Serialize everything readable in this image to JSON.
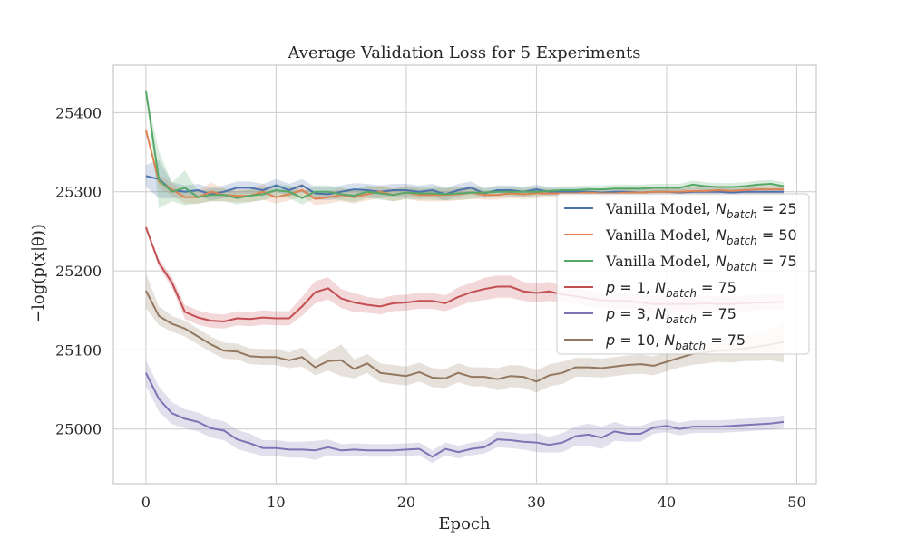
{
  "chart_data": {
    "type": "line",
    "title": "Average Validation Loss for 5 Experiments",
    "xlabel": "Epoch",
    "ylabel": "−log(p(x|θ))",
    "xlim": [
      -2.5,
      51.5
    ],
    "ylim": [
      24931,
      25460
    ],
    "xticks": [
      0,
      10,
      20,
      30,
      40,
      50
    ],
    "yticks": [
      25000,
      25100,
      25200,
      25300,
      25400
    ],
    "grid": true,
    "legend_position": "right",
    "series": [
      {
        "name": "Vanilla Model, N_batch = 25",
        "legend": {
          "prefix": "Vanilla Model, ",
          "var": "N",
          "sub": "batch",
          "eq": " = 25"
        },
        "color": "#4c72b0",
        "x": [
          0,
          1,
          2,
          3,
          4,
          5,
          6,
          7,
          8,
          9,
          10,
          11,
          12,
          13,
          14,
          15,
          16,
          17,
          18,
          19,
          20,
          21,
          22,
          23,
          24,
          25,
          26,
          27,
          28,
          29,
          30,
          31,
          32,
          33,
          34,
          35,
          36,
          37,
          38,
          39,
          40,
          41,
          42,
          43,
          44,
          45,
          46,
          47,
          48,
          49
        ],
        "values": [
          25320,
          25316,
          25302,
          25300,
          25302,
          25297,
          25300,
          25305,
          25305,
          25302,
          25308,
          25302,
          25308,
          25298,
          25297,
          25300,
          25303,
          25302,
          25300,
          25302,
          25302,
          25300,
          25302,
          25297,
          25302,
          25305,
          25298,
          25302,
          25302,
          25300,
          25303,
          25300,
          25300,
          25300,
          25300,
          25299,
          25300,
          25300,
          25299,
          25300,
          25300,
          25299,
          25300,
          25300,
          25300,
          25299,
          25300,
          25300,
          25300,
          25300
        ],
        "band": [
          14,
          24,
          10,
          8,
          8,
          8,
          8,
          8,
          8,
          8,
          8,
          8,
          8,
          8,
          8,
          8,
          8,
          8,
          8,
          8,
          8,
          8,
          8,
          8,
          8,
          8,
          6,
          6,
          6,
          6,
          6,
          5,
          5,
          5,
          5,
          5,
          5,
          5,
          5,
          5,
          5,
          5,
          5,
          5,
          5,
          5,
          5,
          5,
          5,
          5
        ]
      },
      {
        "name": "Vanilla Model, N_batch = 50",
        "legend": {
          "prefix": "Vanilla Model, ",
          "var": "N",
          "sub": "batch",
          "eq": " = 50"
        },
        "color": "#dd8452",
        "x": [
          0,
          1,
          2,
          3,
          4,
          5,
          6,
          7,
          8,
          9,
          10,
          11,
          12,
          13,
          14,
          15,
          16,
          17,
          18,
          19,
          20,
          21,
          22,
          23,
          24,
          25,
          26,
          27,
          28,
          29,
          30,
          31,
          32,
          33,
          34,
          35,
          36,
          37,
          38,
          39,
          40,
          41,
          42,
          43,
          44,
          45,
          46,
          47,
          48,
          49
        ],
        "values": [
          25378,
          25313,
          25303,
          25293,
          25293,
          25300,
          25296,
          25295,
          25295,
          25300,
          25293,
          25297,
          25302,
          25291,
          25293,
          25296,
          25293,
          25297,
          25300,
          25296,
          25299,
          25296,
          25296,
          25296,
          25297,
          25299,
          25296,
          25296,
          25298,
          25297,
          25298,
          25298,
          25298,
          25298,
          25299,
          25298,
          25298,
          25299,
          25299,
          25300,
          25300,
          25300,
          25301,
          25301,
          25302,
          25301,
          25302,
          25303,
          25303,
          25303
        ],
        "band": [
          0,
          8,
          8,
          8,
          8,
          12,
          8,
          8,
          8,
          10,
          8,
          8,
          8,
          8,
          8,
          8,
          8,
          8,
          8,
          8,
          8,
          8,
          8,
          8,
          8,
          8,
          6,
          6,
          6,
          6,
          6,
          5,
          5,
          5,
          5,
          5,
          5,
          5,
          5,
          5,
          5,
          5,
          5,
          5,
          5,
          5,
          5,
          5,
          5,
          5
        ]
      },
      {
        "name": "Vanilla Model, N_batch = 75",
        "legend": {
          "prefix": "Vanilla Model, ",
          "var": "N",
          "sub": "batch",
          "eq": " = 75"
        },
        "color": "#55a868",
        "x": [
          0,
          1,
          2,
          3,
          4,
          5,
          6,
          7,
          8,
          9,
          10,
          11,
          12,
          13,
          14,
          15,
          16,
          17,
          18,
          19,
          20,
          21,
          22,
          23,
          24,
          25,
          26,
          27,
          28,
          29,
          30,
          31,
          32,
          33,
          34,
          35,
          36,
          37,
          38,
          39,
          40,
          41,
          42,
          43,
          44,
          45,
          46,
          47,
          48,
          49
        ],
        "values": [
          25428,
          25315,
          25300,
          25305,
          25293,
          25296,
          25296,
          25292,
          25295,
          25297,
          25302,
          25300,
          25292,
          25300,
          25300,
          25297,
          25295,
          25300,
          25298,
          25296,
          25299,
          25298,
          25298,
          25297,
          25298,
          25299,
          25299,
          25300,
          25300,
          25300,
          25300,
          25301,
          25302,
          25302,
          25303,
          25303,
          25304,
          25304,
          25304,
          25305,
          25305,
          25305,
          25309,
          25307,
          25306,
          25306,
          25307,
          25309,
          25310,
          25307
        ],
        "band": [
          0,
          36,
          12,
          22,
          8,
          8,
          8,
          8,
          8,
          8,
          8,
          8,
          8,
          8,
          8,
          8,
          8,
          8,
          8,
          8,
          8,
          8,
          8,
          8,
          8,
          8,
          6,
          6,
          6,
          6,
          6,
          5,
          5,
          5,
          5,
          5,
          5,
          5,
          5,
          5,
          5,
          5,
          5,
          5,
          5,
          5,
          5,
          5,
          5,
          5
        ]
      },
      {
        "name": "p = 1, N_batch = 75",
        "legend": {
          "prefix": "",
          "var2": "p",
          "eq2": " = 1, ",
          "var": "N",
          "sub": "batch",
          "eq": " = 75"
        },
        "color": "#c44e52",
        "x": [
          0,
          1,
          2,
          3,
          4,
          5,
          6,
          7,
          8,
          9,
          10,
          11,
          12,
          13,
          14,
          15,
          16,
          17,
          18,
          19,
          20,
          21,
          22,
          23,
          24,
          25,
          26,
          27,
          28,
          29,
          30,
          31,
          32,
          33,
          34,
          35,
          36,
          37,
          38,
          39,
          40,
          41,
          42,
          43,
          44,
          45,
          46,
          47,
          48,
          49
        ],
        "values": [
          25255,
          25210,
          25185,
          25148,
          25141,
          25137,
          25136,
          25140,
          25139,
          25141,
          25140,
          25140,
          25155,
          25173,
          25178,
          25165,
          25160,
          25157,
          25155,
          25159,
          25160,
          25162,
          25162,
          25159,
          25167,
          25173,
          25177,
          25180,
          25180,
          25174,
          25172,
          25174,
          25170,
          25168,
          25165,
          25163,
          25162,
          25162,
          25160,
          25158,
          25158,
          25158,
          25158,
          25159,
          25158,
          25158,
          25159,
          25160,
          25160,
          25161
        ],
        "band": [
          0,
          5,
          7,
          9,
          9,
          9,
          9,
          9,
          9,
          9,
          9,
          9,
          12,
          14,
          14,
          12,
          12,
          10,
          10,
          10,
          10,
          10,
          10,
          10,
          12,
          12,
          14,
          14,
          14,
          12,
          12,
          12,
          10,
          10,
          10,
          10,
          10,
          10,
          10,
          10,
          10,
          10,
          10,
          10,
          10,
          10,
          10,
          10,
          10,
          10
        ]
      },
      {
        "name": "p = 3, N_batch = 75",
        "legend": {
          "prefix": "",
          "var2": "p",
          "eq2": " = 3, ",
          "var": "N",
          "sub": "batch",
          "eq": " = 75"
        },
        "color": "#8172b3",
        "x": [
          0,
          1,
          2,
          3,
          4,
          5,
          6,
          7,
          8,
          9,
          10,
          11,
          12,
          13,
          14,
          15,
          16,
          17,
          18,
          19,
          20,
          21,
          22,
          23,
          24,
          25,
          26,
          27,
          28,
          29,
          30,
          31,
          32,
          33,
          34,
          35,
          36,
          37,
          38,
          39,
          40,
          41,
          42,
          43,
          44,
          45,
          46,
          47,
          48,
          49
        ],
        "values": [
          25071,
          25038,
          25020,
          25013,
          25009,
          25001,
          24998,
          24987,
          24982,
          24976,
          24976,
          24974,
          24974,
          24973,
          24977,
          24973,
          24974,
          24973,
          24973,
          24973,
          24974,
          24975,
          24965,
          24975,
          24971,
          24975,
          24977,
          24987,
          24986,
          24984,
          24983,
          24980,
          24983,
          24991,
          24993,
          24989,
          24997,
          24994,
          24994,
          25002,
          25004,
          25000,
          25003,
          25003,
          25003,
          25004,
          25005,
          25006,
          25007,
          25009
        ],
        "band": [
          16,
          16,
          14,
          12,
          12,
          12,
          12,
          12,
          12,
          10,
          10,
          10,
          10,
          12,
          10,
          8,
          8,
          8,
          8,
          8,
          8,
          8,
          8,
          8,
          8,
          8,
          8,
          10,
          10,
          10,
          12,
          10,
          12,
          12,
          14,
          14,
          12,
          10,
          10,
          8,
          8,
          8,
          8,
          8,
          8,
          8,
          8,
          8,
          8,
          8
        ]
      },
      {
        "name": "p = 10, N_batch = 75",
        "legend": {
          "prefix": "",
          "var2": "p",
          "eq2": " = 10, ",
          "var": "N",
          "sub": "batch",
          "eq": " = 75"
        },
        "color": "#937860",
        "x": [
          0,
          1,
          2,
          3,
          4,
          5,
          6,
          7,
          8,
          9,
          10,
          11,
          12,
          13,
          14,
          15,
          16,
          17,
          18,
          19,
          20,
          21,
          22,
          23,
          24,
          25,
          26,
          27,
          28,
          29,
          30,
          31,
          32,
          33,
          34,
          35,
          36,
          37,
          38,
          39,
          40,
          41,
          42,
          43,
          44,
          45,
          46,
          47,
          48,
          49
        ],
        "values": [
          25175,
          25143,
          25133,
          25127,
          25117,
          25107,
          25099,
          25098,
          25092,
          25091,
          25091,
          25087,
          25091,
          25078,
          25086,
          25087,
          25076,
          25083,
          25071,
          25069,
          25067,
          25072,
          25065,
          25064,
          25071,
          25066,
          25066,
          25063,
          25067,
          25066,
          25060,
          25068,
          25071,
          25078,
          25078,
          25077,
          25079,
          25081,
          25082,
          25080,
          25085,
          25090,
          25095,
          25097,
          25099,
          25100,
          25102,
          25104,
          25107,
          25110
        ],
        "band": [
          22,
          12,
          10,
          10,
          10,
          10,
          10,
          10,
          10,
          10,
          10,
          10,
          12,
          10,
          12,
          20,
          12,
          12,
          12,
          12,
          12,
          12,
          12,
          12,
          12,
          12,
          12,
          14,
          14,
          14,
          14,
          14,
          14,
          12,
          12,
          12,
          12,
          12,
          12,
          12,
          12,
          12,
          14,
          14,
          14,
          16,
          16,
          18,
          20,
          26
        ]
      }
    ]
  }
}
